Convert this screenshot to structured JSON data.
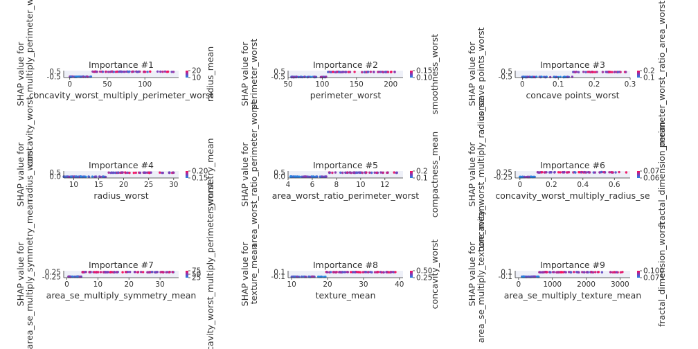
{
  "colors": {
    "low": "#1e88e5",
    "high": "#ff0d57",
    "axis": "#333333"
  },
  "chart_data": [
    {
      "type": "scatter",
      "title": "Importance #1",
      "xlabel": "concavity_worst_multiply_perimeter_worst",
      "ylabel": "SHAP value for\nconcavity_worst_multiply_perimeter_worst",
      "color_label": "radius_mean",
      "xticks": [
        0,
        50,
        100
      ],
      "xlim": [
        -8,
        145
      ],
      "yticks": [
        -0.5,
        0.5
      ],
      "ytick_labels": [
        "-0.5",
        "0.5"
      ],
      "ylim": [
        -0.6,
        0.7
      ],
      "cticks": [
        "20",
        "10"
      ],
      "step_x": 30,
      "step_low": -0.45,
      "step_high": 0.5,
      "x_range": [
        0,
        140
      ],
      "n": 110,
      "seed": 11
    },
    {
      "type": "scatter",
      "title": "Importance #2",
      "xlabel": "perimeter_worst",
      "ylabel": "SHAP value for\nperimeter_worst",
      "color_label": "smoothness_worst",
      "xticks": [
        50,
        100,
        150,
        200
      ],
      "xlim": [
        50,
        218
      ],
      "yticks": [
        -0.5,
        0.5
      ],
      "ytick_labels": [
        "-0.5",
        "0.5"
      ],
      "ylim": [
        -0.6,
        0.7
      ],
      "cticks": [
        "0.15",
        "0.10"
      ],
      "step_x": 106,
      "step_low": -0.5,
      "step_high": 0.45,
      "x_range": [
        55,
        212
      ],
      "n": 110,
      "seed": 22
    },
    {
      "type": "scatter",
      "title": "Importance #3",
      "xlabel": "concave points_worst",
      "ylabel": "SHAP value for\nconcave points_worst",
      "color_label": "perimeter_worst_ratio_area_worst",
      "xticks": [
        0.0,
        0.1,
        0.2,
        0.3
      ],
      "xlim": [
        -0.02,
        0.3
      ],
      "yticks": [
        -0.5,
        0.5
      ],
      "ytick_labels": [
        "-0.5",
        "0.5"
      ],
      "ylim": [
        -0.6,
        0.7
      ],
      "cticks": [
        "0.2",
        "0.1"
      ],
      "step_x": 0.14,
      "step_low": -0.5,
      "step_high": 0.45,
      "x_range": [
        0,
        0.29
      ],
      "n": 110,
      "seed": 33
    },
    {
      "type": "scatter",
      "title": "Importance #4",
      "xlabel": "radius_worst",
      "ylabel": "SHAP value for\nradius_worst",
      "color_label": "symmetry_mean",
      "xticks": [
        10,
        15,
        20,
        25,
        30
      ],
      "xlim": [
        8,
        31
      ],
      "yticks": [
        0.0,
        0.5
      ],
      "ytick_labels": [
        "0.0",
        "0.5"
      ],
      "ylim": [
        -0.15,
        0.7
      ],
      "cticks": [
        "0.20",
        "0.15"
      ],
      "step_x": 16.5,
      "step_low": 0.0,
      "step_high": 0.5,
      "x_range": [
        8,
        30
      ],
      "n": 110,
      "seed": 44
    },
    {
      "type": "scatter",
      "title": "Importance #5",
      "xlabel": "area_worst_ratio_perimeter_worst",
      "ylabel": "SHAP value for\narea_worst_ratio_perimeter_worst",
      "color_label": "compactness_mean",
      "xticks": [
        4,
        6,
        8,
        10,
        12
      ],
      "xlim": [
        4,
        13.5
      ],
      "yticks": [
        0.0,
        0.5
      ],
      "ytick_labels": [
        "0.0",
        "0.5"
      ],
      "ylim": [
        -0.15,
        0.7
      ],
      "cticks": [
        "0.2",
        "0.1"
      ],
      "step_x": 7.3,
      "step_low": 0.0,
      "step_high": 0.5,
      "x_range": [
        4.2,
        13
      ],
      "n": 110,
      "seed": 55
    },
    {
      "type": "scatter",
      "title": "Importance #6",
      "xlabel": "concavity_worst_multiply_radius_se",
      "ylabel": "SHAP value for\nconcavity_worst_multiply_radius_se",
      "color_label": "fractal_dimension_mean",
      "xticks": [
        0.0,
        0.2,
        0.4,
        0.6
      ],
      "xlim": [
        -0.03,
        0.7
      ],
      "yticks": [
        -0.25,
        0.25
      ],
      "ytick_labels": [
        "-0.25",
        "0.25"
      ],
      "ylim": [
        -0.33,
        0.38
      ],
      "cticks": [
        "0.07",
        "0.06"
      ],
      "step_x": 0.1,
      "step_low": -0.23,
      "step_high": 0.25,
      "x_range": [
        0,
        0.68
      ],
      "n": 110,
      "seed": 66
    },
    {
      "type": "scatter",
      "title": "Importance #7",
      "xlabel": "area_se_multiply_symmetry_mean",
      "ylabel": "SHAP value for\narea_se_multiply_symmetry_mean",
      "color_label": "concavity_worst_multiply_perimeter_worst",
      "xticks": [
        0,
        10,
        20,
        30
      ],
      "xlim": [
        -1,
        36
      ],
      "yticks": [
        -0.25,
        0.25
      ],
      "ytick_labels": [
        "-0.25",
        "0.25"
      ],
      "ylim": [
        -0.33,
        0.38
      ],
      "cticks": [
        "75",
        "50",
        "25"
      ],
      "step_x": 5,
      "step_low": -0.23,
      "step_high": 0.24,
      "x_range": [
        0.5,
        35
      ],
      "n": 110,
      "seed": 77
    },
    {
      "type": "scatter",
      "title": "Importance #8",
      "xlabel": "texture_mean",
      "ylabel": "SHAP value for\ntexture_mean",
      "color_label": "concavity_worst",
      "xticks": [
        10,
        20,
        30,
        40
      ],
      "xlim": [
        9,
        41
      ],
      "yticks": [
        -0.1,
        0.1
      ],
      "ytick_labels": [
        "-0.1",
        "0.1"
      ],
      "ylim": [
        -0.14,
        0.16
      ],
      "cticks": [
        "0.50",
        "0.25"
      ],
      "step_x": 19.5,
      "step_low": -0.1,
      "step_high": 0.1,
      "x_range": [
        10,
        39
      ],
      "n": 110,
      "seed": 88
    },
    {
      "type": "scatter",
      "title": "Importance #9",
      "xlabel": "area_se_multiply_texture_mean",
      "ylabel": "SHAP value for\narea_se_multiply_texture_mean",
      "color_label": "fractal_dimension_worst",
      "xticks": [
        0,
        1000,
        2000,
        3000
      ],
      "xlim": [
        -100,
        3300
      ],
      "yticks": [
        -0.1,
        0.1
      ],
      "ytick_labels": [
        "-0.1",
        "0.1"
      ],
      "ylim": [
        -0.14,
        0.16
      ],
      "cticks": [
        "0.100",
        "0.075"
      ],
      "step_x": 600,
      "step_low": -0.1,
      "step_high": 0.1,
      "x_range": [
        100,
        3100
      ],
      "n": 110,
      "seed": 99
    }
  ]
}
